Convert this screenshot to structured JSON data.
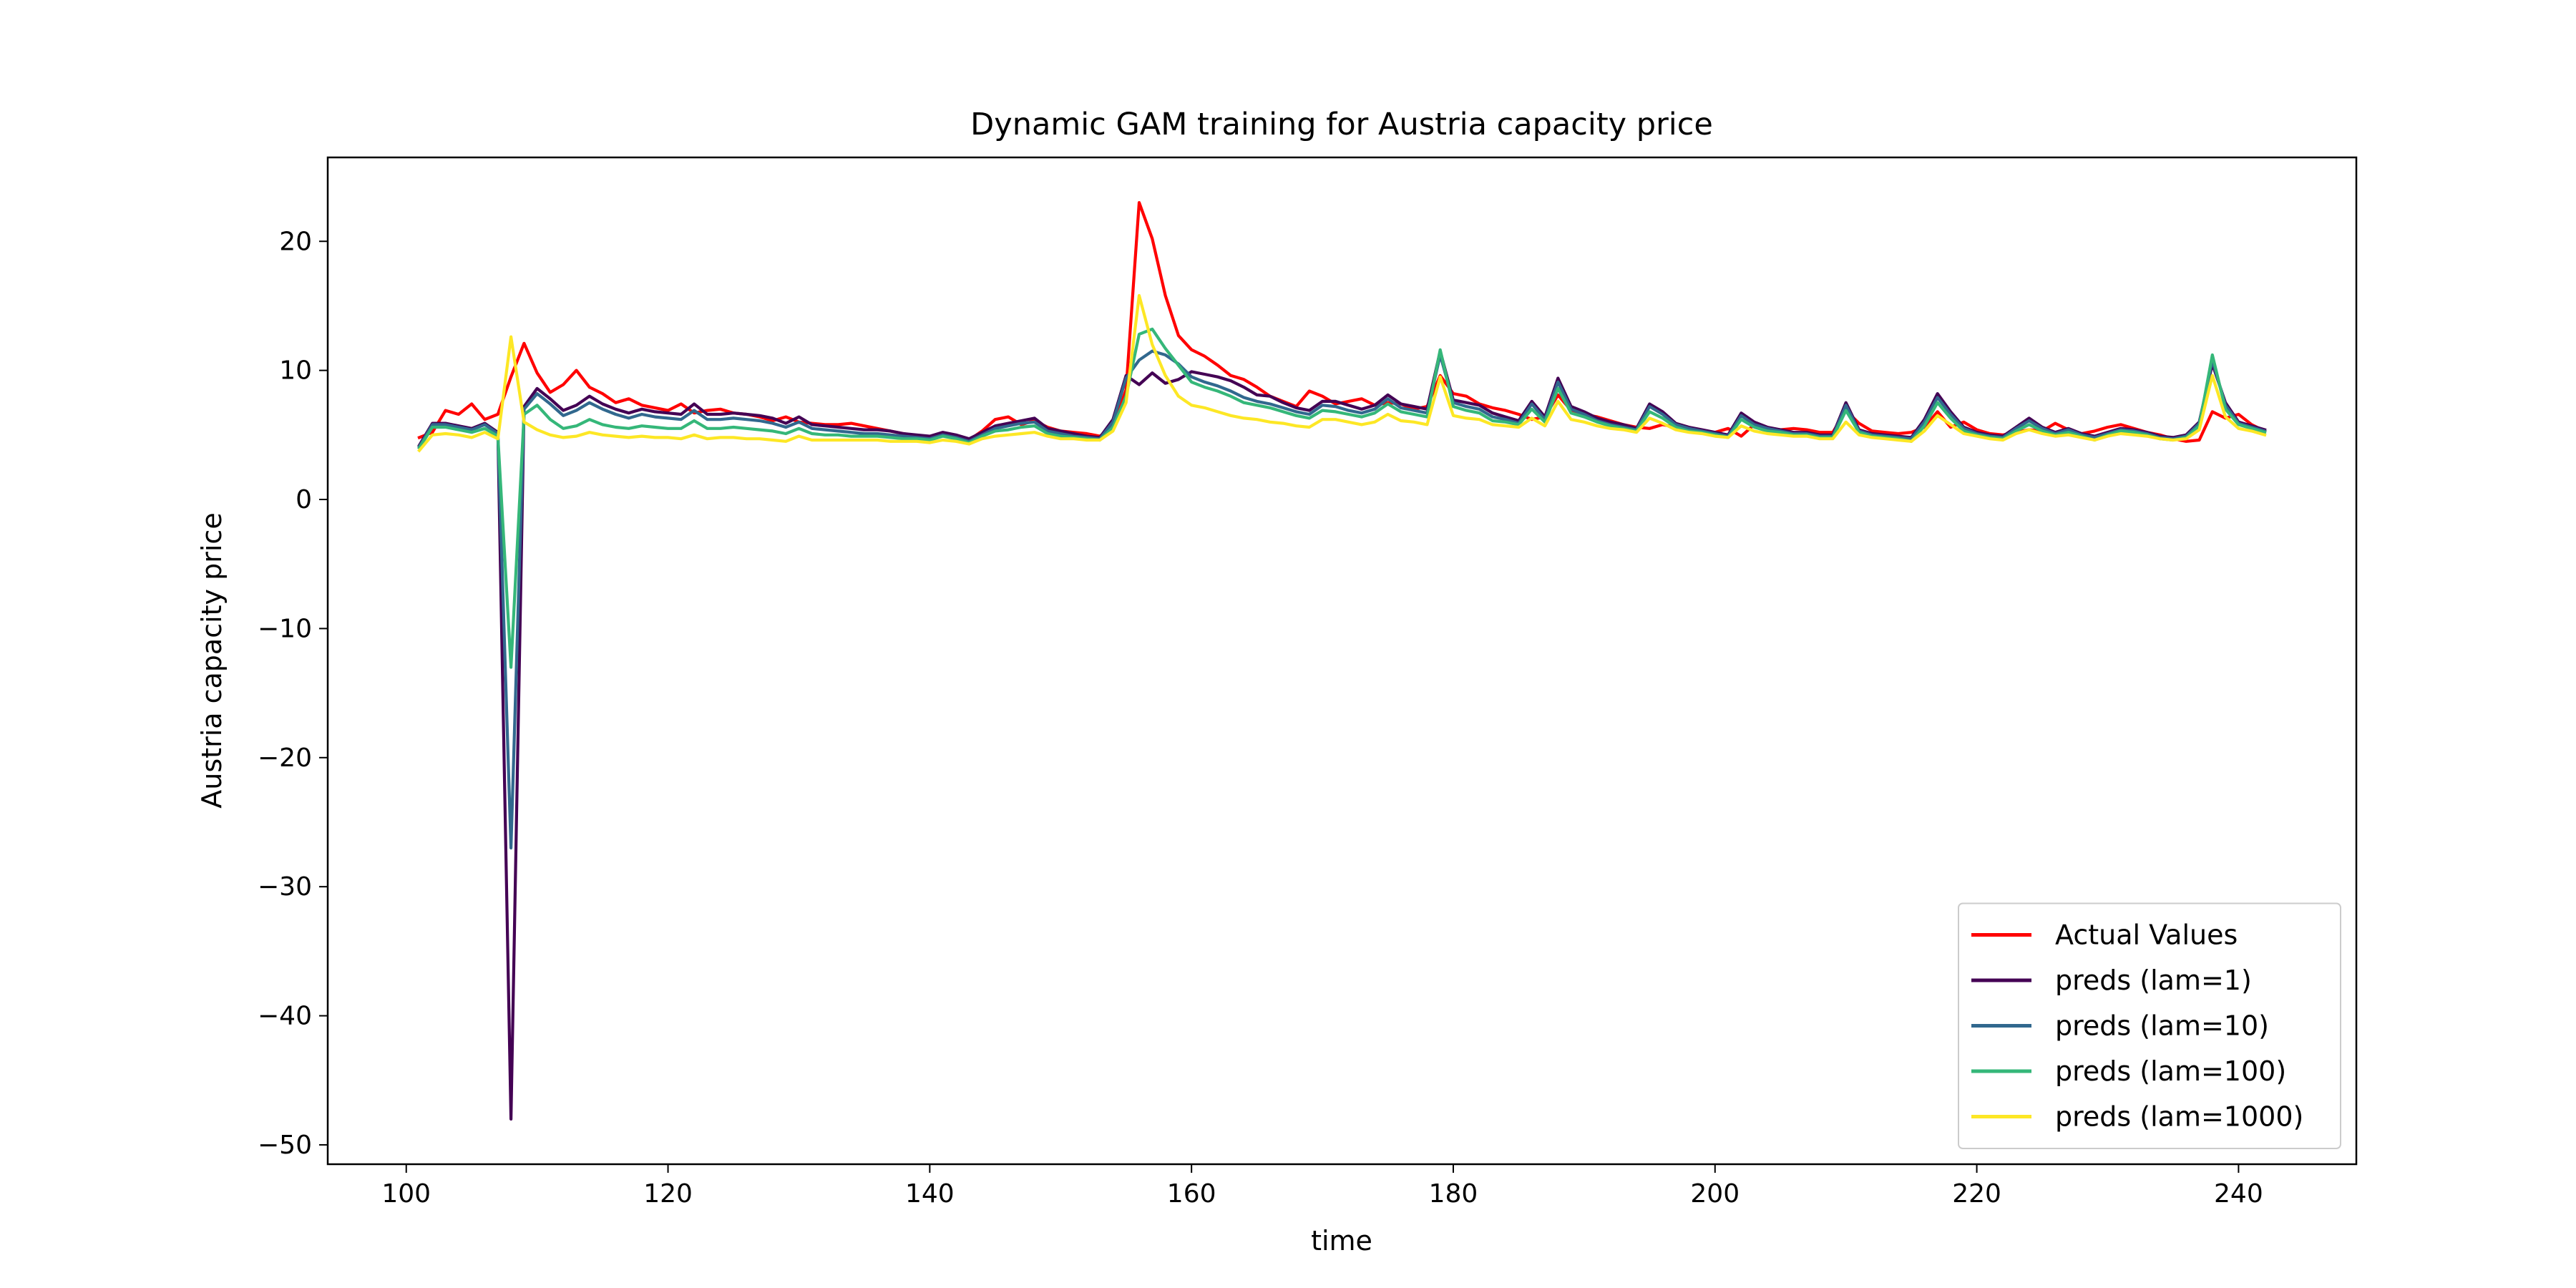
{
  "chart_data": {
    "type": "line",
    "title": "Dynamic GAM training for Austria capacity price",
    "xlabel": "time",
    "ylabel": "Austria capacity price",
    "xlim": [
      94,
      249
    ],
    "ylim": [
      -51.5,
      26.5
    ],
    "xticks": [
      100,
      120,
      140,
      160,
      180,
      200,
      220,
      240
    ],
    "yticks": [
      -50,
      -40,
      -30,
      -20,
      -10,
      0,
      10,
      20
    ],
    "grid": false,
    "legend_position": "lower-right",
    "x": [
      101,
      102,
      103,
      104,
      105,
      106,
      107,
      108,
      109,
      110,
      111,
      112,
      113,
      114,
      115,
      116,
      117,
      118,
      119,
      120,
      121,
      122,
      123,
      124,
      125,
      126,
      127,
      128,
      129,
      130,
      131,
      132,
      133,
      134,
      135,
      136,
      137,
      138,
      139,
      140,
      141,
      142,
      143,
      144,
      145,
      146,
      147,
      148,
      149,
      150,
      151,
      152,
      153,
      154,
      155,
      156,
      157,
      158,
      159,
      160,
      161,
      162,
      163,
      164,
      165,
      166,
      167,
      168,
      169,
      170,
      171,
      172,
      173,
      174,
      175,
      176,
      177,
      178,
      179,
      180,
      181,
      182,
      183,
      184,
      185,
      186,
      187,
      188,
      189,
      190,
      191,
      192,
      193,
      194,
      195,
      196,
      197,
      198,
      199,
      200,
      201,
      202,
      203,
      204,
      205,
      206,
      207,
      208,
      209,
      210,
      211,
      212,
      213,
      214,
      215,
      216,
      217,
      218,
      219,
      220,
      221,
      222,
      223,
      224,
      225,
      226,
      227,
      228,
      229,
      230,
      231,
      232,
      233,
      234,
      235,
      236,
      237,
      238,
      239,
      240,
      241,
      242
    ],
    "series": [
      {
        "name": "Actual Values",
        "color": "#ff0000",
        "values": [
          4.8,
          5.2,
          6.9,
          6.6,
          7.4,
          6.2,
          6.6,
          9.5,
          12.1,
          9.8,
          8.3,
          8.9,
          10.0,
          8.7,
          8.2,
          7.5,
          7.8,
          7.3,
          7.1,
          6.9,
          7.4,
          6.7,
          6.9,
          7.0,
          6.7,
          6.6,
          6.4,
          6.1,
          6.4,
          6.0,
          5.9,
          5.8,
          5.8,
          5.9,
          5.7,
          5.5,
          5.3,
          5.1,
          4.9,
          4.8,
          5.0,
          4.8,
          4.6,
          5.3,
          6.2,
          6.4,
          5.8,
          6.1,
          5.6,
          5.3,
          5.2,
          5.1,
          4.9,
          5.6,
          8.5,
          23.0,
          20.2,
          15.8,
          12.7,
          11.6,
          11.1,
          10.4,
          9.6,
          9.3,
          8.7,
          8.0,
          7.6,
          7.2,
          8.4,
          8.0,
          7.4,
          7.6,
          7.8,
          7.3,
          7.5,
          7.4,
          7.0,
          7.2,
          9.6,
          8.2,
          8.0,
          7.4,
          7.1,
          6.9,
          6.6,
          6.2,
          6.4,
          8.1,
          6.9,
          6.6,
          6.4,
          6.1,
          5.8,
          5.6,
          5.5,
          5.8,
          5.6,
          5.4,
          5.3,
          5.2,
          5.5,
          4.9,
          5.8,
          5.5,
          5.4,
          5.5,
          5.4,
          5.2,
          5.2,
          6.9,
          5.9,
          5.3,
          5.2,
          5.1,
          5.2,
          5.6,
          6.8,
          5.6,
          6.0,
          5.4,
          5.1,
          5.0,
          5.2,
          5.4,
          5.3,
          5.9,
          5.4,
          5.1,
          5.3,
          5.6,
          5.8,
          5.5,
          5.2,
          5.0,
          4.7,
          4.5,
          4.6,
          6.8,
          6.3,
          6.6,
          5.8,
          5.3
        ]
      },
      {
        "name": "preds (lam=1)",
        "color": "#440154",
        "values": [
          4.2,
          5.9,
          5.9,
          5.7,
          5.5,
          5.9,
          5.2,
          -48.0,
          7.2,
          8.6,
          7.8,
          6.9,
          7.3,
          8.0,
          7.4,
          7.0,
          6.7,
          7.0,
          6.8,
          6.7,
          6.6,
          7.4,
          6.6,
          6.6,
          6.7,
          6.6,
          6.5,
          6.3,
          5.9,
          6.4,
          5.8,
          5.7,
          5.6,
          5.5,
          5.4,
          5.4,
          5.3,
          5.1,
          5.0,
          4.9,
          5.2,
          5.0,
          4.7,
          5.2,
          5.7,
          5.9,
          6.1,
          6.3,
          5.5,
          5.3,
          5.1,
          4.9,
          4.8,
          6.2,
          9.6,
          8.9,
          9.8,
          9.0,
          9.3,
          9.9,
          9.7,
          9.5,
          9.2,
          8.7,
          8.1,
          8.0,
          7.5,
          7.1,
          6.9,
          7.6,
          7.6,
          7.3,
          7.0,
          7.3,
          8.1,
          7.4,
          7.2,
          7.0,
          11.5,
          7.7,
          7.5,
          7.3,
          6.7,
          6.4,
          6.1,
          7.6,
          6.4,
          9.4,
          7.2,
          6.8,
          6.3,
          6.0,
          5.8,
          5.5,
          7.4,
          6.8,
          5.9,
          5.6,
          5.4,
          5.2,
          5.0,
          6.7,
          6.0,
          5.6,
          5.4,
          5.2,
          5.2,
          5.0,
          5.0,
          7.5,
          5.4,
          5.1,
          5.0,
          4.9,
          4.8,
          6.2,
          8.2,
          6.8,
          5.6,
          5.2,
          5.0,
          4.9,
          5.6,
          6.3,
          5.6,
          5.2,
          5.5,
          5.1,
          4.9,
          5.2,
          5.5,
          5.4,
          5.2,
          4.9,
          4.8,
          5.0,
          6.0,
          10.5,
          7.5,
          6.0,
          5.7,
          5.4
        ]
      },
      {
        "name": "preds (lam=10)",
        "color": "#31688e",
        "values": [
          4.1,
          5.8,
          5.8,
          5.6,
          5.4,
          5.8,
          5.1,
          -27.0,
          7.0,
          8.2,
          7.4,
          6.5,
          6.9,
          7.5,
          7.0,
          6.6,
          6.3,
          6.6,
          6.4,
          6.3,
          6.2,
          6.9,
          6.2,
          6.2,
          6.3,
          6.2,
          6.1,
          5.9,
          5.6,
          6.0,
          5.5,
          5.4,
          5.3,
          5.2,
          5.1,
          5.1,
          5.0,
          4.9,
          4.8,
          4.7,
          5.0,
          4.8,
          4.5,
          5.0,
          5.5,
          5.7,
          5.9,
          6.0,
          5.3,
          5.1,
          4.9,
          4.8,
          4.7,
          6.0,
          9.4,
          10.8,
          11.5,
          11.2,
          10.5,
          9.5,
          9.1,
          8.8,
          8.4,
          7.9,
          7.6,
          7.4,
          7.1,
          6.8,
          6.6,
          7.3,
          7.2,
          6.9,
          6.7,
          7.0,
          7.8,
          7.1,
          6.9,
          6.7,
          11.2,
          7.5,
          7.2,
          7.0,
          6.4,
          6.2,
          5.9,
          7.4,
          6.2,
          9.1,
          7.0,
          6.6,
          6.1,
          5.8,
          5.6,
          5.4,
          7.2,
          6.6,
          5.8,
          5.5,
          5.3,
          5.1,
          4.9,
          6.5,
          5.8,
          5.5,
          5.3,
          5.1,
          5.1,
          4.9,
          4.9,
          7.3,
          5.3,
          5.0,
          4.9,
          4.8,
          4.7,
          6.0,
          7.9,
          6.6,
          5.5,
          5.1,
          4.9,
          4.8,
          5.5,
          6.1,
          5.5,
          5.1,
          5.4,
          5.0,
          4.8,
          5.1,
          5.4,
          5.3,
          5.1,
          4.8,
          4.7,
          4.9,
          5.9,
          10.8,
          7.3,
          5.9,
          5.6,
          5.3
        ]
      },
      {
        "name": "preds (lam=100)",
        "color": "#35b779",
        "values": [
          4.0,
          5.6,
          5.6,
          5.4,
          5.2,
          5.5,
          4.9,
          -13.0,
          6.6,
          7.3,
          6.2,
          5.5,
          5.7,
          6.2,
          5.8,
          5.6,
          5.5,
          5.7,
          5.6,
          5.5,
          5.5,
          6.1,
          5.5,
          5.5,
          5.6,
          5.5,
          5.4,
          5.3,
          5.1,
          5.5,
          5.1,
          5.0,
          5.0,
          4.9,
          4.9,
          4.9,
          4.8,
          4.7,
          4.7,
          4.6,
          4.9,
          4.7,
          4.4,
          4.9,
          5.3,
          5.4,
          5.6,
          5.7,
          5.1,
          4.9,
          4.8,
          4.7,
          4.6,
          5.6,
          8.0,
          12.8,
          13.2,
          11.7,
          10.4,
          9.1,
          8.7,
          8.4,
          8.0,
          7.5,
          7.3,
          7.1,
          6.8,
          6.5,
          6.3,
          6.9,
          6.8,
          6.6,
          6.4,
          6.7,
          7.4,
          6.8,
          6.6,
          6.4,
          11.6,
          7.2,
          6.9,
          6.7,
          6.1,
          6.0,
          5.8,
          7.0,
          6.0,
          8.6,
          6.7,
          6.4,
          6.0,
          5.7,
          5.5,
          5.3,
          6.8,
          6.3,
          5.6,
          5.3,
          5.2,
          5.0,
          4.8,
          6.2,
          5.6,
          5.3,
          5.2,
          5.0,
          5.0,
          4.8,
          4.8,
          6.9,
          5.2,
          4.9,
          4.8,
          4.7,
          4.5,
          5.7,
          7.5,
          6.3,
          5.3,
          5.0,
          4.8,
          4.7,
          5.3,
          5.8,
          5.3,
          5.0,
          5.2,
          4.9,
          4.6,
          5.0,
          5.3,
          5.2,
          5.0,
          4.7,
          4.6,
          4.8,
          5.7,
          11.2,
          7.0,
          5.8,
          5.5,
          5.2
        ]
      },
      {
        "name": "preds (lam=1000)",
        "color": "#fde725",
        "values": [
          3.8,
          5.0,
          5.1,
          5.0,
          4.8,
          5.2,
          4.7,
          12.6,
          6.0,
          5.4,
          5.0,
          4.8,
          4.9,
          5.2,
          5.0,
          4.9,
          4.8,
          4.9,
          4.8,
          4.8,
          4.7,
          5.0,
          4.7,
          4.8,
          4.8,
          4.7,
          4.7,
          4.6,
          4.5,
          4.9,
          4.6,
          4.6,
          4.6,
          4.6,
          4.6,
          4.6,
          4.5,
          4.5,
          4.5,
          4.4,
          4.6,
          4.5,
          4.3,
          4.7,
          4.9,
          5.0,
          5.1,
          5.2,
          4.9,
          4.7,
          4.7,
          4.6,
          4.6,
          5.3,
          7.5,
          15.8,
          12.0,
          9.6,
          8.0,
          7.3,
          7.1,
          6.8,
          6.5,
          6.3,
          6.2,
          6.0,
          5.9,
          5.7,
          5.6,
          6.2,
          6.2,
          6.0,
          5.8,
          6.0,
          6.6,
          6.1,
          6.0,
          5.8,
          9.5,
          6.5,
          6.3,
          6.2,
          5.8,
          5.7,
          5.6,
          6.3,
          5.7,
          7.6,
          6.2,
          6.0,
          5.7,
          5.5,
          5.4,
          5.2,
          6.3,
          5.9,
          5.4,
          5.2,
          5.1,
          4.9,
          4.8,
          5.7,
          5.3,
          5.1,
          5.0,
          4.9,
          4.9,
          4.7,
          4.7,
          6.0,
          5.0,
          4.8,
          4.7,
          4.6,
          4.5,
          5.3,
          6.5,
          5.8,
          5.1,
          4.9,
          4.7,
          4.6,
          5.1,
          5.4,
          5.1,
          4.9,
          5.0,
          4.8,
          4.6,
          4.9,
          5.1,
          5.0,
          4.9,
          4.7,
          4.6,
          4.7,
          5.4,
          9.6,
          6.4,
          5.5,
          5.3,
          5.0
        ]
      }
    ]
  }
}
